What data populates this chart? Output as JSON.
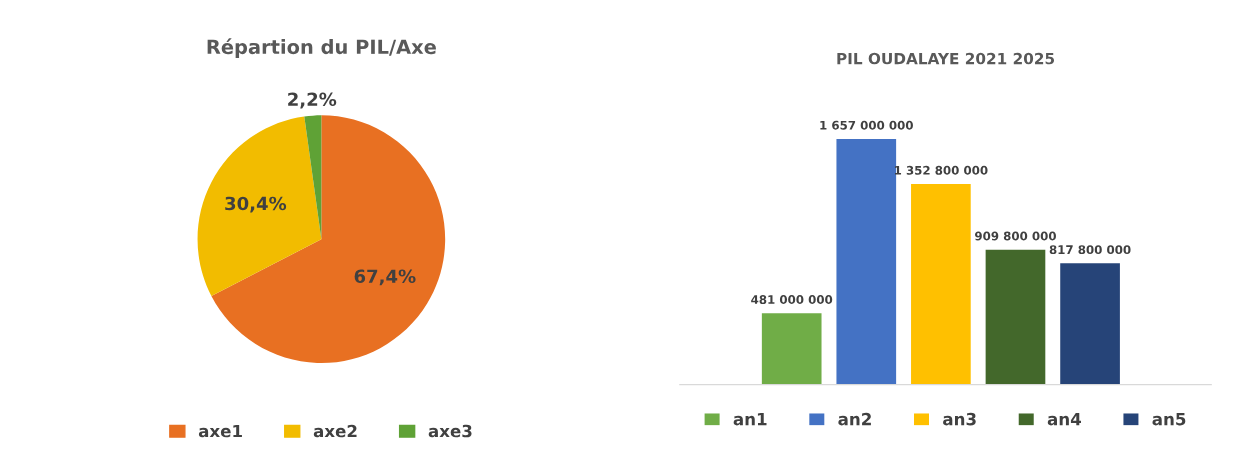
{
  "chart_data": [
    {
      "type": "pie",
      "title": "Répartion du PIL/Axe",
      "categories": [
        "axe1",
        "axe2",
        "axe3"
      ],
      "values": [
        67.4,
        30.4,
        2.2
      ],
      "colors": [
        "#e87022",
        "#f2bc00",
        "#5fa236"
      ],
      "value_labels": [
        "67,4%",
        "30,4%",
        "2,2%"
      ],
      "legend": "bottom"
    },
    {
      "type": "bar",
      "title": "PIL OUDALAYE 2021 2025",
      "categories": [
        null
      ],
      "series": [
        {
          "name": "an1",
          "color": "#70ad47",
          "values": [
            481000000
          ],
          "value_labels": [
            "481 000 000"
          ]
        },
        {
          "name": "an2",
          "color": "#4472c4",
          "values": [
            1657000000
          ],
          "value_labels": [
            "1 657 000 000"
          ]
        },
        {
          "name": "an3",
          "color": "#ffc000",
          "values": [
            1352800000
          ],
          "value_labels": [
            "1 352 800 000"
          ]
        },
        {
          "name": "an4",
          "color": "#43682b",
          "values": [
            909800000
          ],
          "value_labels": [
            "909 800 000"
          ]
        },
        {
          "name": "an5",
          "color": "#264478",
          "values": [
            817800000
          ],
          "value_labels": [
            "817 800 000"
          ]
        }
      ],
      "legend": "bottom",
      "tick_labels": false
    }
  ]
}
